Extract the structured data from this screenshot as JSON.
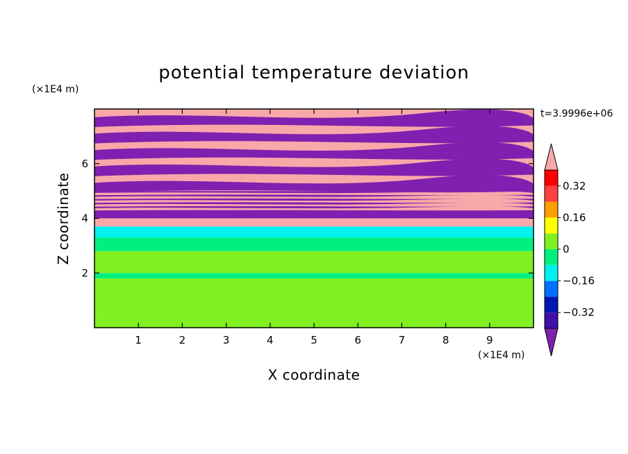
{
  "chart_data": {
    "type": "heatmap",
    "title": "potential temperature deviation",
    "xlabel": "X coordinate",
    "ylabel": "Z coordinate",
    "x_unit": "(×1E4 m)",
    "y_unit": "(×1E4 m)",
    "time_label": "t=3.9996e+06",
    "xlim": [
      0,
      10
    ],
    "ylim": [
      0,
      8
    ],
    "x_ticks": [
      1,
      2,
      3,
      4,
      5,
      6,
      7,
      8,
      9
    ],
    "y_ticks": [
      2,
      4,
      6
    ],
    "x_tick_labels": [
      "1",
      "2",
      "3",
      "4",
      "5",
      "6",
      "7",
      "8",
      "9"
    ],
    "y_tick_labels": [
      "2",
      "4",
      "6"
    ],
    "colorbar": {
      "levels": [
        -0.4,
        -0.32,
        -0.24,
        -0.16,
        -0.08,
        0,
        0.08,
        0.16,
        0.24,
        0.32,
        0.4
      ],
      "labels": [
        "0.32",
        "0.16",
        "0",
        "−0.16",
        "−0.32"
      ],
      "label_values": [
        0.32,
        0.16,
        0,
        -0.16,
        -0.32
      ],
      "colors": [
        "#8020b0",
        "#4010a8",
        "#0018b0",
        "#0070ff",
        "#00f0f0",
        "#00f080",
        "#80f020",
        "#ffff00",
        "#ffa000",
        "#ff4040",
        "#ff0000",
        "#f8a8a8"
      ],
      "extend": "both"
    },
    "layers": [
      {
        "z": [
          0.0,
          0.3
        ],
        "value": 0.05
      },
      {
        "z": [
          0.3,
          1.8
        ],
        "value": 0.05,
        "pattern": "plumes"
      },
      {
        "z": [
          1.8,
          2.0
        ],
        "value": -0.02
      },
      {
        "z": [
          2.0,
          2.4
        ],
        "value": 0.0
      },
      {
        "z": [
          2.4,
          2.8
        ],
        "value": 0.04
      },
      {
        "z": [
          2.8,
          3.3
        ],
        "value": -0.01
      },
      {
        "z": [
          3.3,
          3.5
        ],
        "value": -0.1
      },
      {
        "z": [
          3.5,
          3.7
        ],
        "value": -0.1
      },
      {
        "z": [
          3.7,
          4.0
        ],
        "value": 0.5
      },
      {
        "z": [
          4.0,
          4.3
        ],
        "value": -0.45
      },
      {
        "z": [
          4.3,
          5.0
        ],
        "value": -0.45,
        "stripe": 0.5
      },
      {
        "z": [
          5.0,
          8.0
        ],
        "value": 0.5,
        "stripe": -0.45
      }
    ]
  }
}
